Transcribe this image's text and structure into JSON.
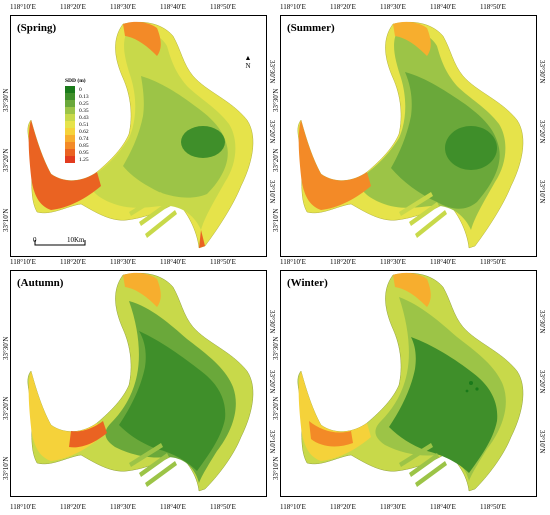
{
  "panels": [
    {
      "season": "(Spring)",
      "tone": "spring"
    },
    {
      "season": "(Summer)",
      "tone": "summer"
    },
    {
      "season": "(Autumn)",
      "tone": "autumn"
    },
    {
      "season": "(Winter)",
      "tone": "winter"
    }
  ],
  "lon_ticks": [
    "118°10′E",
    "118°20′E",
    "118°30′E",
    "118°40′E",
    "118°50′E"
  ],
  "lat_ticks": [
    "33°30′N",
    "33°20′N",
    "33°10′N"
  ],
  "legend": {
    "title": "SDD (m)",
    "entries": [
      {
        "label": "0",
        "color": "#1a7a1a"
      },
      {
        "label": "0.13",
        "color": "#3f8f2a"
      },
      {
        "label": "0.25",
        "color": "#6aa83a"
      },
      {
        "label": "0.35",
        "color": "#9cc447"
      },
      {
        "label": "0.43",
        "color": "#c8d94a"
      },
      {
        "label": "0.51",
        "color": "#e6e34a"
      },
      {
        "label": "0.62",
        "color": "#f5d23a"
      },
      {
        "label": "0.74",
        "color": "#f7ae2e"
      },
      {
        "label": "0.85",
        "color": "#f38a27"
      },
      {
        "label": "0.95",
        "color": "#ea6322"
      },
      {
        "label": "1.25",
        "color": "#e23b1f"
      }
    ]
  },
  "north_label": "N",
  "scale": {
    "start": "0",
    "end": "10Km"
  }
}
